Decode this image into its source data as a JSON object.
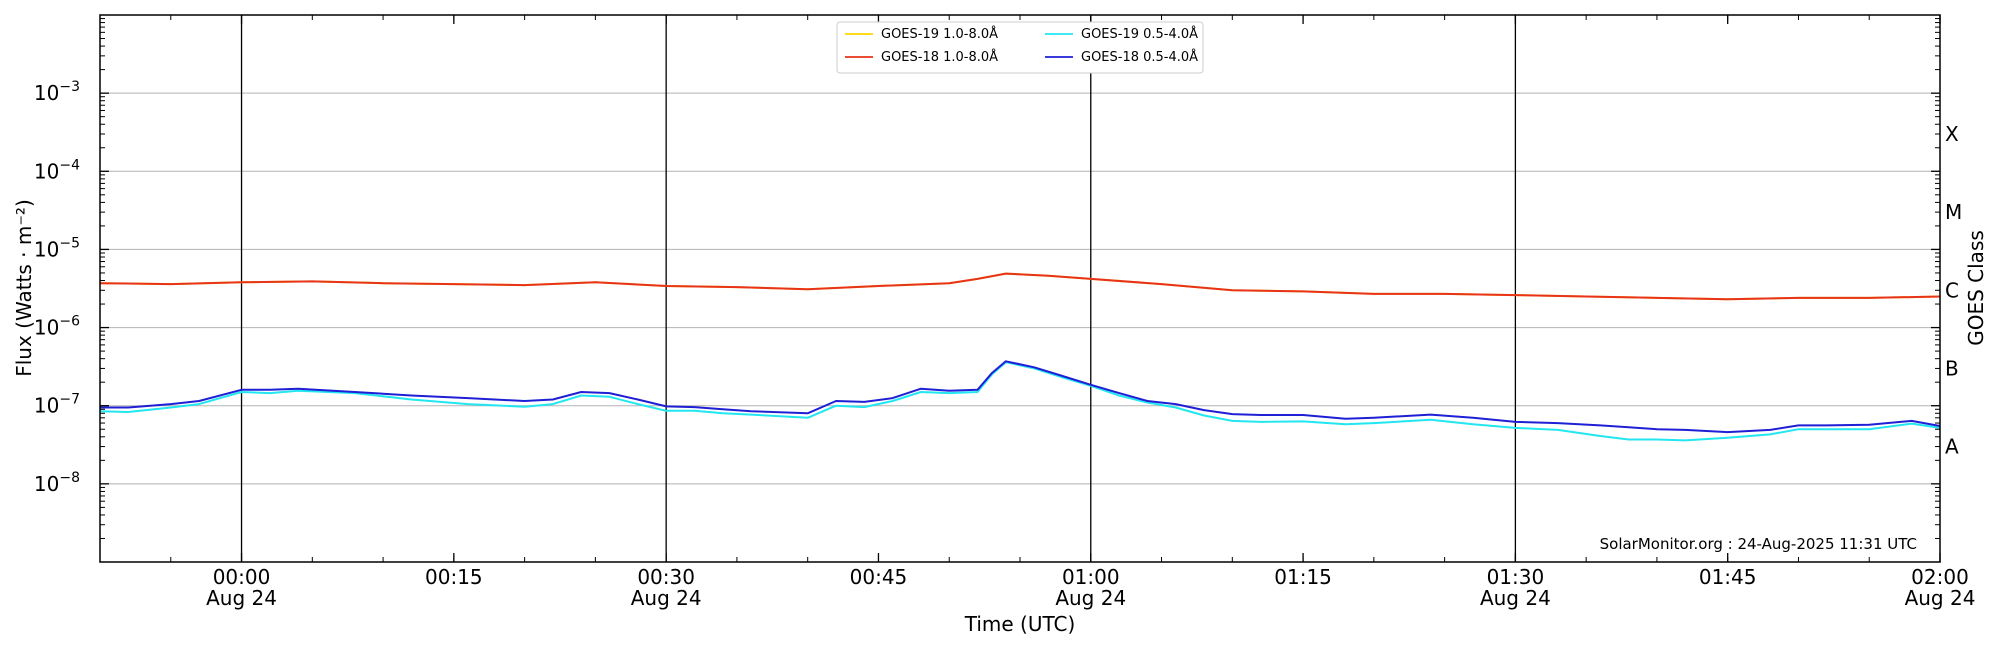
{
  "chart_data": {
    "type": "line",
    "xlabel": "Time (UTC)",
    "ylabel": "Flux (Watts · m⁻²)",
    "y_scale": "log",
    "ylim": [
      1e-09,
      0.01
    ],
    "xlim": [
      "2025-08-23T23:50",
      "2025-08-24T02:00"
    ],
    "grid": "horizontal at decades",
    "legend_position": "top-center",
    "x_ticks": [
      {
        "time": "00:00",
        "date": "Aug 24"
      },
      {
        "time": "00:15",
        "date": ""
      },
      {
        "time": "00:30",
        "date": "Aug 24"
      },
      {
        "time": "00:45",
        "date": ""
      },
      {
        "time": "01:00",
        "date": "Aug 24"
      },
      {
        "time": "01:15",
        "date": ""
      },
      {
        "time": "01:30",
        "date": "Aug 24"
      },
      {
        "time": "01:45",
        "date": ""
      },
      {
        "time": "02:00",
        "date": "Aug 24"
      }
    ],
    "vertical_lines_at": [
      "00:00",
      "00:30",
      "01:00",
      "01:30"
    ],
    "y_ticks": [
      {
        "value": 1e-08,
        "base": "10",
        "exp": "−8"
      },
      {
        "value": 1e-07,
        "base": "10",
        "exp": "−7"
      },
      {
        "value": 1e-06,
        "base": "10",
        "exp": "−6"
      },
      {
        "value": 1e-05,
        "base": "10",
        "exp": "−5"
      },
      {
        "value": 0.0001,
        "base": "10",
        "exp": "−4"
      },
      {
        "value": 0.001,
        "base": "10",
        "exp": "−3"
      }
    ],
    "right_axis": {
      "label": "GOES Class",
      "classes": [
        {
          "name": "A",
          "value": 3e-08
        },
        {
          "name": "B",
          "value": 3e-07
        },
        {
          "name": "C",
          "value": 3e-06
        },
        {
          "name": "M",
          "value": 3e-05
        },
        {
          "name": "X",
          "value": 0.0003
        }
      ]
    },
    "series": [
      {
        "name": "GOES-19 1.0-8.0Å",
        "color": "#ffd700",
        "width": 2,
        "x": [
          "23:50",
          "23:55",
          "00:00",
          "00:05",
          "00:10",
          "00:15",
          "00:20",
          "00:25",
          "00:30",
          "00:35",
          "00:40",
          "00:45",
          "00:50",
          "00:52",
          "00:54",
          "00:57",
          "01:00",
          "01:05",
          "01:10",
          "01:15",
          "01:20",
          "01:25",
          "01:30",
          "01:35",
          "01:40",
          "01:45",
          "01:50",
          "01:55",
          "02:00"
        ],
        "values": [
          3.7e-06,
          3.6e-06,
          3.8e-06,
          3.9e-06,
          3.7e-06,
          3.6e-06,
          3.5e-06,
          3.8e-06,
          3.4e-06,
          3.3e-06,
          3.1e-06,
          3.4e-06,
          3.7e-06,
          4.2e-06,
          4.9e-06,
          4.6e-06,
          4.2e-06,
          3.6e-06,
          3e-06,
          2.9e-06,
          2.7e-06,
          2.7e-06,
          2.6e-06,
          2.5e-06,
          2.4e-06,
          2.3e-06,
          2.4e-06,
          2.4e-06,
          2.5e-06
        ]
      },
      {
        "name": "GOES-18 1.0-8.0Å",
        "color": "#e8331c",
        "width": 2,
        "x": [
          "23:50",
          "23:55",
          "00:00",
          "00:05",
          "00:10",
          "00:15",
          "00:20",
          "00:25",
          "00:30",
          "00:35",
          "00:40",
          "00:45",
          "00:50",
          "00:52",
          "00:54",
          "00:57",
          "01:00",
          "01:05",
          "01:10",
          "01:15",
          "01:20",
          "01:25",
          "01:30",
          "01:35",
          "01:40",
          "01:45",
          "01:50",
          "01:55",
          "02:00"
        ],
        "values": [
          3.7e-06,
          3.6e-06,
          3.8e-06,
          3.9e-06,
          3.7e-06,
          3.6e-06,
          3.5e-06,
          3.8e-06,
          3.4e-06,
          3.3e-06,
          3.1e-06,
          3.4e-06,
          3.7e-06,
          4.2e-06,
          4.9e-06,
          4.6e-06,
          4.2e-06,
          3.6e-06,
          3e-06,
          2.9e-06,
          2.7e-06,
          2.7e-06,
          2.6e-06,
          2.5e-06,
          2.4e-06,
          2.3e-06,
          2.4e-06,
          2.4e-06,
          2.5e-06
        ]
      },
      {
        "name": "GOES-19 0.5-4.0Å",
        "color": "#22e6f0",
        "width": 2,
        "x": [
          "23:50",
          "23:52",
          "23:55",
          "23:57",
          "00:00",
          "00:02",
          "00:04",
          "00:08",
          "00:12",
          "00:16",
          "00:20",
          "00:22",
          "00:24",
          "00:26",
          "00:28",
          "00:30",
          "00:32",
          "00:34",
          "00:36",
          "00:40",
          "00:42",
          "00:44",
          "00:46",
          "00:48",
          "00:50",
          "00:52",
          "00:53",
          "00:54",
          "00:56",
          "00:58",
          "01:00",
          "01:02",
          "01:04",
          "01:06",
          "01:08",
          "01:10",
          "01:12",
          "01:15",
          "01:18",
          "01:20",
          "01:24",
          "01:27",
          "01:30",
          "01:33",
          "01:36",
          "01:38",
          "01:40",
          "01:42",
          "01:45",
          "01:48",
          "01:50",
          "01:52",
          "01:55",
          "01:58",
          "02:00"
        ],
        "values": [
          8.5e-08,
          8.3e-08,
          9.5e-08,
          1.05e-07,
          1.5e-07,
          1.45e-07,
          1.55e-07,
          1.45e-07,
          1.2e-07,
          1.05e-07,
          9.7e-08,
          1.05e-07,
          1.35e-07,
          1.3e-07,
          1.05e-07,
          8.6e-08,
          8.6e-08,
          8e-08,
          7.7e-08,
          7e-08,
          1e-07,
          9.6e-08,
          1.15e-07,
          1.5e-07,
          1.45e-07,
          1.5e-07,
          2.5e-07,
          3.6e-07,
          3e-07,
          2.3e-07,
          1.8e-07,
          1.35e-07,
          1.1e-07,
          9.5e-08,
          7.5e-08,
          6.4e-08,
          6.2e-08,
          6.3e-08,
          5.8e-08,
          6e-08,
          6.6e-08,
          5.8e-08,
          5.2e-08,
          4.9e-08,
          4.1e-08,
          3.7e-08,
          3.7e-08,
          3.6e-08,
          3.9e-08,
          4.3e-08,
          5e-08,
          5e-08,
          5e-08,
          5.9e-08,
          5.2e-08
        ]
      },
      {
        "name": "GOES-18 0.5-4.0Å",
        "color": "#1f1fd6",
        "width": 2,
        "x": [
          "23:50",
          "23:52",
          "23:55",
          "23:57",
          "00:00",
          "00:02",
          "00:04",
          "00:08",
          "00:12",
          "00:16",
          "00:20",
          "00:22",
          "00:24",
          "00:26",
          "00:28",
          "00:30",
          "00:32",
          "00:34",
          "00:36",
          "00:40",
          "00:42",
          "00:44",
          "00:46",
          "00:48",
          "00:50",
          "00:52",
          "00:53",
          "00:54",
          "00:56",
          "00:58",
          "01:00",
          "01:02",
          "01:04",
          "01:06",
          "01:08",
          "01:10",
          "01:12",
          "01:15",
          "01:18",
          "01:20",
          "01:24",
          "01:27",
          "01:30",
          "01:33",
          "01:36",
          "01:38",
          "01:40",
          "01:42",
          "01:45",
          "01:48",
          "01:50",
          "01:52",
          "01:55",
          "01:58",
          "02:00"
        ],
        "values": [
          9.5e-08,
          9.5e-08,
          1.05e-07,
          1.15e-07,
          1.6e-07,
          1.6e-07,
          1.65e-07,
          1.5e-07,
          1.35e-07,
          1.25e-07,
          1.15e-07,
          1.2e-07,
          1.5e-07,
          1.45e-07,
          1.2e-07,
          9.8e-08,
          9.6e-08,
          9e-08,
          8.5e-08,
          8e-08,
          1.15e-07,
          1.12e-07,
          1.25e-07,
          1.65e-07,
          1.55e-07,
          1.6e-07,
          2.6e-07,
          3.7e-07,
          3.1e-07,
          2.4e-07,
          1.85e-07,
          1.45e-07,
          1.15e-07,
          1.05e-07,
          8.8e-08,
          7.8e-08,
          7.6e-08,
          7.6e-08,
          6.8e-08,
          7e-08,
          7.7e-08,
          7e-08,
          6.2e-08,
          6e-08,
          5.6e-08,
          5.3e-08,
          5e-08,
          4.9e-08,
          4.6e-08,
          4.9e-08,
          5.6e-08,
          5.6e-08,
          5.7e-08,
          6.4e-08,
          5.5e-08
        ]
      }
    ],
    "annotation": "SolarMonitor.org : 24-Aug-2025 11:31 UTC"
  }
}
